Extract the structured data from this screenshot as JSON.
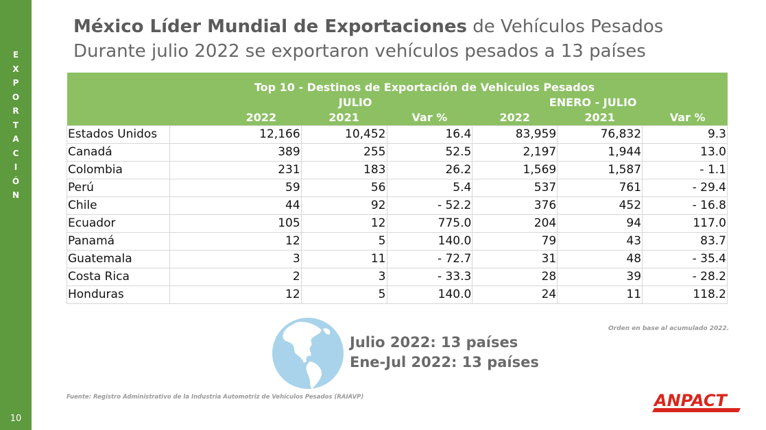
{
  "sidebar": {
    "letters": [
      "E",
      "X",
      "P",
      "O",
      "R",
      "T",
      "A",
      "C",
      "I",
      "Ó",
      "N"
    ],
    "page_number": "10",
    "color": "#5e9a3e"
  },
  "header": {
    "title_bold": "México Líder Mundial de Exportaciones",
    "title_rest": "de Vehículos Pesados",
    "subtitle": "Durante julio 2022 se exportaron vehículos pesados a 13 países"
  },
  "table": {
    "title": "Top 10 - Destinos de Exportación de Vehiculos Pesados",
    "group_julio": "JULIO",
    "group_enero": "ENERO - JULIO",
    "columns": [
      "2022",
      "2021",
      "Var %",
      "2022",
      "2021",
      "Var %"
    ],
    "header_color": "#8cc063",
    "rows": [
      {
        "country": "Estados Unidos",
        "v": [
          "12,166",
          "10,452",
          "16.4",
          "83,959",
          "76,832",
          "9.3"
        ]
      },
      {
        "country": "Canadá",
        "v": [
          "389",
          "255",
          "52.5",
          "2,197",
          "1,944",
          "13.0"
        ]
      },
      {
        "country": "Colombia",
        "v": [
          "231",
          "183",
          "26.2",
          "1,569",
          "1,587",
          "- 1.1"
        ]
      },
      {
        "country": "Perú",
        "v": [
          "59",
          "56",
          "5.4",
          "537",
          "761",
          "- 29.4"
        ]
      },
      {
        "country": "Chile",
        "v": [
          "44",
          "92",
          "- 52.2",
          "376",
          "452",
          "- 16.8"
        ]
      },
      {
        "country": "Ecuador",
        "v": [
          "105",
          "12",
          "775.0",
          "204",
          "94",
          "117.0"
        ]
      },
      {
        "country": "Panamá",
        "v": [
          "12",
          "5",
          "140.0",
          "79",
          "43",
          "83.7"
        ]
      },
      {
        "country": "Guatemala",
        "v": [
          "3",
          "11",
          "- 72.7",
          "31",
          "48",
          "- 35.4"
        ]
      },
      {
        "country": "Costa Rica",
        "v": [
          "2",
          "3",
          "- 33.3",
          "28",
          "39",
          "- 28.2"
        ]
      },
      {
        "country": "Honduras",
        "v": [
          "12",
          "5",
          "140.0",
          "24",
          "11",
          "118.2"
        ]
      }
    ]
  },
  "order_note": "Orden en base al acumulado 2022.",
  "summary": {
    "line1": "Julio 2022: 13 países",
    "line2": "Ene-Jul 2022: 13 países"
  },
  "source": "Fuente: Registro Administrativo de la Industria Automotriz de Vehículos Pesados (RAIAVP)",
  "logo": {
    "text": "ANPACT",
    "color": "#d9261c"
  }
}
